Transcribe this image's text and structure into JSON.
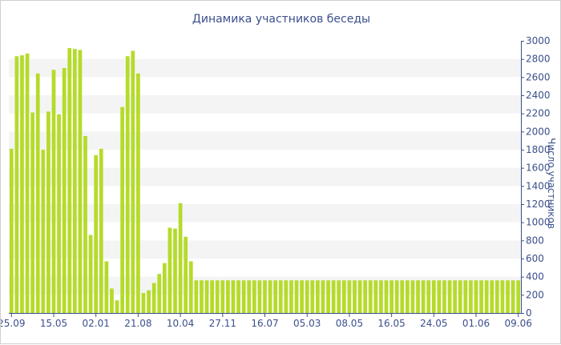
{
  "chart_data": {
    "type": "bar",
    "title": "Динамика участников беседы",
    "ylabel": "Число участников",
    "xlabel": "",
    "ylim": [
      0,
      3000
    ],
    "yticks": [
      0,
      200,
      400,
      600,
      800,
      1000,
      1200,
      1400,
      1600,
      1800,
      2000,
      2200,
      2400,
      2600,
      2800,
      3000
    ],
    "y_axis_side": "right",
    "grid": "alternating horizontal bands",
    "colors": {
      "bar": "#b5db2a",
      "band": "#f4f4f4",
      "axis": "#3b4f8c",
      "title": "#3b4f8c"
    },
    "x_tick_labels": [
      {
        "label": "25.09",
        "index": 0
      },
      {
        "label": "15.05",
        "index": 8
      },
      {
        "label": "02.01",
        "index": 16
      },
      {
        "label": "21.08",
        "index": 24
      },
      {
        "label": "10.04",
        "index": 32
      },
      {
        "label": "27.11",
        "index": 40
      },
      {
        "label": "16.07",
        "index": 48
      },
      {
        "label": "05.03",
        "index": 56
      },
      {
        "label": "08.05",
        "index": 64
      },
      {
        "label": "16.05",
        "index": 72
      },
      {
        "label": "24.05",
        "index": 80
      },
      {
        "label": "01.06",
        "index": 88
      },
      {
        "label": "09.06",
        "index": 96
      }
    ],
    "values": [
      1810,
      2830,
      2840,
      2860,
      2210,
      2640,
      1800,
      2220,
      2680,
      2190,
      2700,
      2920,
      2910,
      2900,
      1950,
      860,
      1740,
      1810,
      570,
      270,
      140,
      2270,
      2830,
      2890,
      2640,
      220,
      250,
      330,
      430,
      550,
      940,
      930,
      1210,
      840,
      570,
      360,
      360,
      360,
      360,
      360,
      360,
      360,
      360,
      360,
      360,
      360,
      360,
      360,
      360,
      360,
      360,
      360,
      360,
      360,
      360,
      360,
      360,
      360,
      360,
      360,
      360,
      360,
      360,
      360,
      360,
      360,
      360,
      360,
      360,
      360,
      360,
      360,
      360,
      360,
      360,
      360,
      360,
      360,
      360,
      360,
      360,
      360,
      360,
      360,
      360,
      360,
      360,
      360,
      360,
      360,
      360,
      360,
      360,
      360,
      360,
      360,
      360
    ]
  }
}
